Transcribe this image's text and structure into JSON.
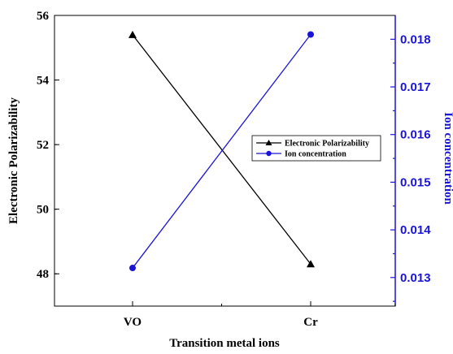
{
  "chart_data": {
    "type": "line",
    "categories": [
      "VO",
      "Cr"
    ],
    "xlabel": "Transition metal ions",
    "ylabel_left": "Electronic Polarizability",
    "ylabel_right": "Ion concentration",
    "ylim_left": [
      47,
      56
    ],
    "yticks_left": [
      48,
      50,
      52,
      54,
      56
    ],
    "ylim_right": [
      0.0124,
      0.0185
    ],
    "yticks_right": [
      0.013,
      0.014,
      0.015,
      0.016,
      0.017,
      0.018
    ],
    "yticks_right_labels": [
      "0.013",
      "0.014",
      "0.015",
      "0.016",
      "0.017",
      "0.018"
    ],
    "grid": false,
    "legend_position": "center-right",
    "series": [
      {
        "name": "Electronic Polarizability",
        "axis": "left",
        "marker": "triangle",
        "color": "#000000",
        "values": [
          55.4,
          48.3
        ]
      },
      {
        "name": "Ion concentration",
        "axis": "right",
        "marker": "circle",
        "color": "#1a14d6",
        "values": [
          0.0132,
          0.0181
        ]
      }
    ]
  }
}
